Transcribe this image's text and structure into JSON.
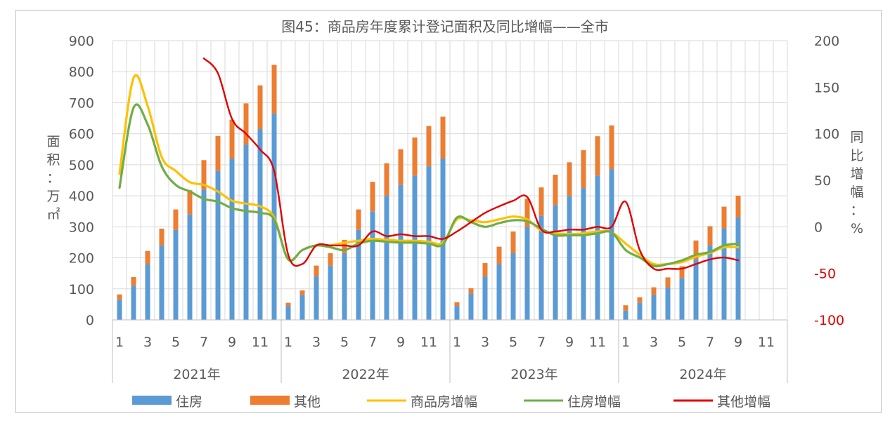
{
  "chart_data": {
    "type": "bar",
    "title": "图45：商品房年度累计登记面积及同比增幅——全市",
    "ylabel": "面积：万㎡",
    "y2label": "同比增幅：%",
    "ylim": [
      0,
      900
    ],
    "y2lim": [
      -100,
      200
    ],
    "yticks": [
      0,
      100,
      200,
      300,
      400,
      500,
      600,
      700,
      800,
      900
    ],
    "y2ticks": [
      -100,
      -50,
      0,
      50,
      100,
      150,
      200
    ],
    "month_labels": [
      "1",
      "",
      "3",
      "",
      "5",
      "",
      "7",
      "",
      "9",
      "",
      "11",
      ""
    ],
    "years": [
      "2021年",
      "2022年",
      "2023年",
      "2024年"
    ],
    "legend": [
      "住房",
      "其他",
      "商品房增幅",
      "住房增幅",
      "其他增幅"
    ],
    "colors": {
      "housing": "#5b9bd5",
      "other": "#ed7d31",
      "total_growth": "#ffc000",
      "housing_growth": "#70ad47",
      "other_growth": "#e00000"
    },
    "series": [
      {
        "name": "住房",
        "kind": "bar",
        "values": [
          65,
          110,
          180,
          240,
          290,
          340,
          420,
          480,
          520,
          565,
          615,
          665,
          45,
          80,
          140,
          175,
          215,
          290,
          350,
          400,
          435,
          465,
          495,
          520,
          45,
          85,
          140,
          180,
          215,
          300,
          335,
          370,
          400,
          425,
          465,
          485,
          30,
          55,
          80,
          105,
          135,
          195,
          240,
          295,
          330,
          null,
          null,
          null
        ]
      },
      {
        "name": "其他",
        "kind": "bar",
        "values": [
          82,
          138,
          222,
          294,
          356,
          418,
          515,
          593,
          645,
          698,
          756,
          822,
          55,
          95,
          175,
          215,
          258,
          356,
          445,
          505,
          550,
          588,
          625,
          655,
          57,
          102,
          183,
          236,
          285,
          390,
          427,
          468,
          508,
          547,
          592,
          627,
          47,
          73,
          105,
          137,
          173,
          256,
          302,
          365,
          400,
          null,
          null,
          null
        ]
      },
      {
        "name": "商品房增幅",
        "kind": "line",
        "values": [
          57,
          160,
          130,
          75,
          60,
          48,
          45,
          38,
          28,
          25,
          22,
          10,
          -35,
          -25,
          -20,
          -20,
          -17,
          -15,
          -13,
          -14,
          -15,
          -15,
          -16,
          -17,
          8,
          7,
          5,
          8,
          11,
          8,
          -4,
          -7,
          -8,
          -7,
          -5,
          -6,
          -18,
          -30,
          -40,
          -40,
          -38,
          -32,
          -28,
          -22,
          -22,
          null,
          null,
          null
        ]
      },
      {
        "name": "住房增幅",
        "kind": "line",
        "values": [
          42,
          128,
          110,
          65,
          45,
          38,
          30,
          27,
          20,
          17,
          15,
          8,
          -35,
          -25,
          -20,
          -22,
          -25,
          -18,
          -15,
          -16,
          -17,
          -17,
          -18,
          -19,
          10,
          5,
          0,
          4,
          7,
          6,
          -2,
          -9,
          -9,
          -9,
          -7,
          -6,
          -25,
          -33,
          -42,
          -40,
          -36,
          -30,
          -27,
          -20,
          -18,
          null,
          null,
          null
        ]
      },
      {
        "name": "其他增幅",
        "kind": "line",
        "values": [
          null,
          null,
          null,
          null,
          null,
          null,
          181,
          165,
          116,
          100,
          83,
          60,
          -30,
          -40,
          -20,
          -20,
          -20,
          -20,
          -5,
          -10,
          -8,
          -10,
          -10,
          -13,
          -5,
          5,
          15,
          22,
          28,
          32,
          -3,
          -5,
          -3,
          -3,
          0,
          0,
          27,
          -25,
          -45,
          -45,
          -45,
          -40,
          -35,
          -33,
          -36,
          null,
          null,
          null
        ]
      }
    ]
  }
}
